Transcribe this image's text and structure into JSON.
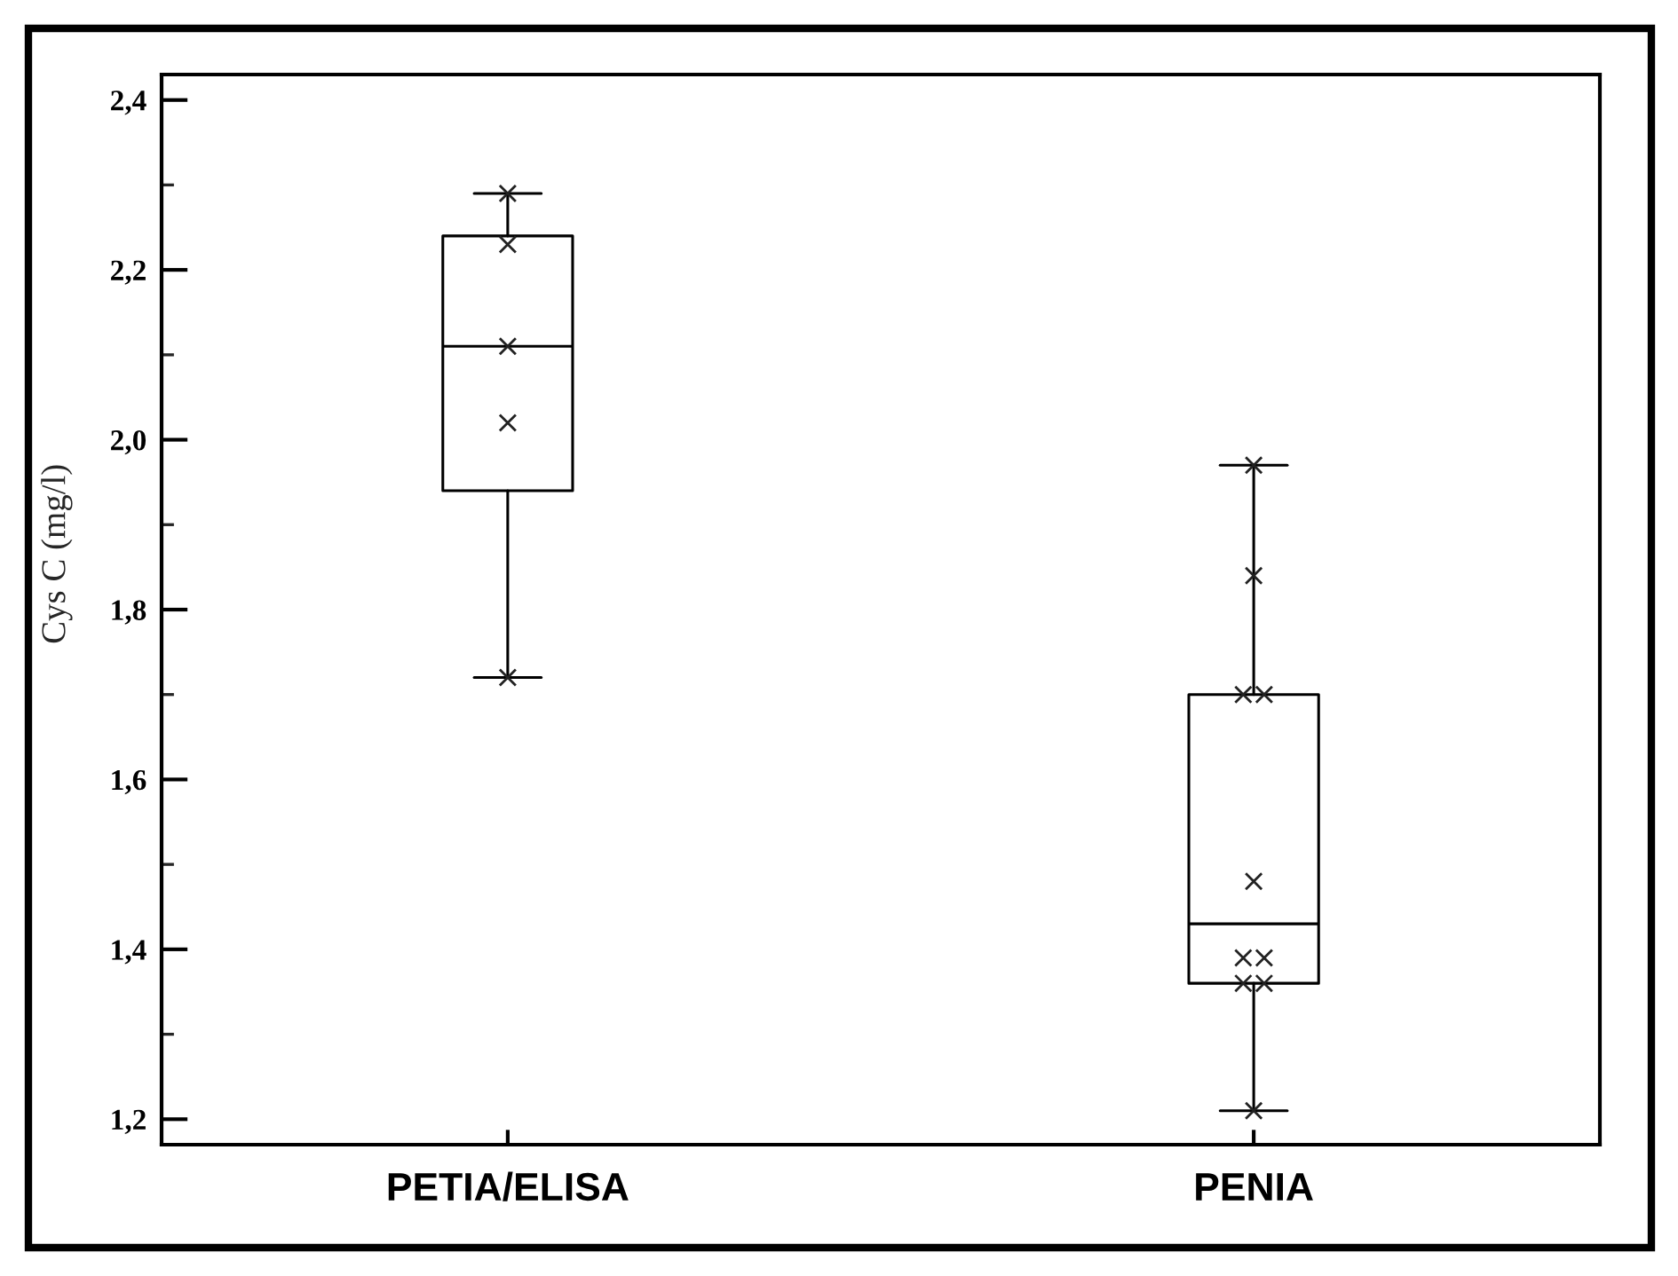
{
  "chart_data": {
    "type": "box",
    "ylabel": "Cys C (mg/l)",
    "categories": [
      "PETIA/ELISA",
      "PENIA"
    ],
    "series": [
      {
        "color": "#000000",
        "boxes": [
          {
            "low": 1.72,
            "q1": 1.94,
            "median": 2.11,
            "q3": 2.24,
            "high": 2.29
          },
          {
            "low": 1.21,
            "q1": 1.36,
            "median": 1.43,
            "q3": 1.7,
            "high": 1.97
          }
        ]
      },
      {
        "type": "scatter",
        "color": "#222222",
        "x": [
          "PETIA/ELISA",
          "PETIA/ELISA",
          "PETIA/ELISA",
          "PETIA/ELISA",
          "PETIA/ELISA",
          "PENIA",
          "PENIA",
          "PENIA",
          "PENIA",
          "PENIA",
          "PENIA",
          "PENIA",
          "PENIA",
          "PENIA",
          "PENIA"
        ],
        "values": [
          2.29,
          2.23,
          2.11,
          2.02,
          1.72,
          1.97,
          1.84,
          1.7,
          1.7,
          1.48,
          1.39,
          1.39,
          1.36,
          1.36,
          1.21
        ]
      }
    ],
    "marker": "cross",
    "ylim": [
      1.17,
      2.43
    ],
    "yticks": [
      {
        "value": 1.2,
        "label": "1,2"
      },
      {
        "value": 1.3,
        "label": null
      },
      {
        "value": 1.4,
        "label": "1,4"
      },
      {
        "value": 1.5,
        "label": null
      },
      {
        "value": 1.6,
        "label": "1,6"
      },
      {
        "value": 1.7,
        "label": null
      },
      {
        "value": 1.8,
        "label": "1,8"
      },
      {
        "value": 1.9,
        "label": null
      },
      {
        "value": 2.0,
        "label": "2,0"
      },
      {
        "value": 2.1,
        "label": null
      },
      {
        "value": 2.2,
        "label": "2,2"
      },
      {
        "value": 2.3,
        "label": null
      },
      {
        "value": 2.4,
        "label": "2,4"
      }
    ]
  }
}
